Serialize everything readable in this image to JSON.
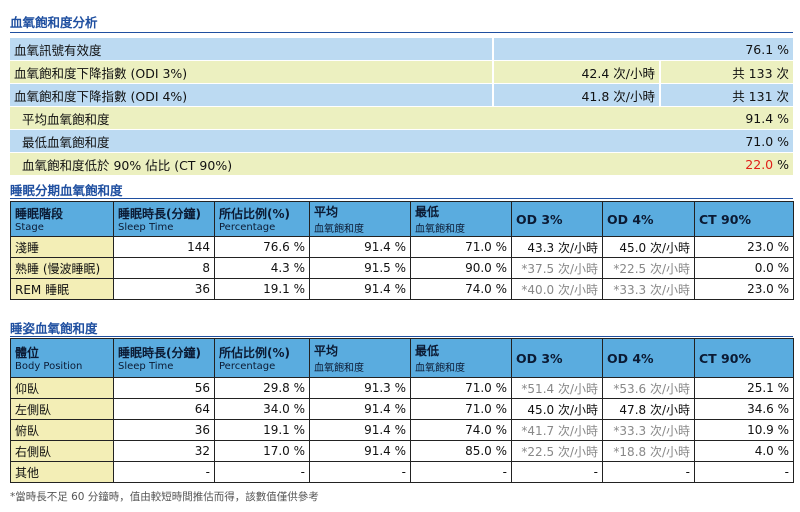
{
  "oxygen_analysis": {
    "title": "血氧飽和度分析",
    "rows": [
      {
        "label": "血氧訊號有效度",
        "value": "",
        "total": "76.1 %"
      },
      {
        "label": "血氧飽和度下降指數 (ODI 3%)",
        "value": "42.4 次/小時",
        "total": "共 133 次"
      },
      {
        "label": "血氧飽和度下降指數 (ODI 4%)",
        "value": "41.8 次/小時",
        "total": "共 131 次"
      },
      {
        "label": "平均血氧飽和度",
        "value": "",
        "total": "91.4 %"
      },
      {
        "label": "最低血氧飽和度",
        "value": "",
        "total": "71.0 %"
      },
      {
        "label": "血氧飽和度低於 90% 佔比 (CT 90%)",
        "value": "",
        "total_value": "22.0",
        "total_unit": " %"
      }
    ]
  },
  "sleep_stage": {
    "title": "睡眠分期血氧飽和度",
    "headers": [
      {
        "main": "睡眠階段",
        "sub": "Stage"
      },
      {
        "main": "睡眠時長(分鐘)",
        "sub": "Sleep Time"
      },
      {
        "main": "所佔比例(%)",
        "sub": "Percentage"
      },
      {
        "main": "平均",
        "sub": "血氧飽和度"
      },
      {
        "main": "最低",
        "sub": "血氧飽和度"
      },
      {
        "main": "OD 3%",
        "sub": ""
      },
      {
        "main": "OD 4%",
        "sub": ""
      },
      {
        "main": "CT 90%",
        "sub": ""
      }
    ],
    "rows": [
      {
        "label": "淺睡",
        "time": "144",
        "pct": "76.6 %",
        "avg": "91.4 %",
        "min": "71.0 %",
        "od3": "43.3 次/小時",
        "od4": "45.0 次/小時",
        "ct90": "23.0 %"
      },
      {
        "label": "熟睡 (慢波睡眠)",
        "time": "8",
        "pct": "4.3 %",
        "avg": "91.5 %",
        "min": "90.0 %",
        "od3": "*37.5 次/小時",
        "od4": "*22.5 次/小時",
        "ct90": "0.0 %"
      },
      {
        "label": "REM 睡眠",
        "time": "36",
        "pct": "19.1 %",
        "avg": "91.4 %",
        "min": "74.0 %",
        "od3": "*40.0 次/小時",
        "od4": "*33.3 次/小時",
        "ct90": "23.0 %"
      }
    ]
  },
  "body_position": {
    "title": "睡姿血氧飽和度",
    "headers": [
      {
        "main": "體位",
        "sub": "Body Position"
      },
      {
        "main": "睡眠時長(分鐘)",
        "sub": "Sleep Time"
      },
      {
        "main": "所佔比例(%)",
        "sub": "Percentage"
      },
      {
        "main": "平均",
        "sub": "血氧飽和度"
      },
      {
        "main": "最低",
        "sub": "血氧飽和度"
      },
      {
        "main": "OD 3%",
        "sub": ""
      },
      {
        "main": "OD 4%",
        "sub": ""
      },
      {
        "main": "CT 90%",
        "sub": ""
      }
    ],
    "rows": [
      {
        "label": "仰臥",
        "time": "56",
        "pct": "29.8 %",
        "avg": "91.3 %",
        "min": "71.0 %",
        "od3": "*51.4 次/小時",
        "od4": "*53.6 次/小時",
        "ct90": "25.1 %"
      },
      {
        "label": "左側臥",
        "time": "64",
        "pct": "34.0 %",
        "avg": "91.4 %",
        "min": "71.0 %",
        "od3": "45.0 次/小時",
        "od4": "47.8 次/小時",
        "ct90": "34.6 %"
      },
      {
        "label": "俯臥",
        "time": "36",
        "pct": "19.1 %",
        "avg": "91.4 %",
        "min": "74.0 %",
        "od3": "*41.7 次/小時",
        "od4": "*33.3 次/小時",
        "ct90": "10.9 %"
      },
      {
        "label": "右側臥",
        "time": "32",
        "pct": "17.0 %",
        "avg": "91.4 %",
        "min": "85.0 %",
        "od3": "*22.5 次/小時",
        "od4": "*18.8 次/小時",
        "ct90": "4.0 %"
      },
      {
        "label": "其他",
        "time": "-",
        "pct": "-",
        "avg": "-",
        "min": "-",
        "od3": "-",
        "od4": "-",
        "ct90": "-"
      }
    ]
  },
  "footnote": "*當時長不足 60 分鐘時，值由較短時間推估而得，該數值僅供參考",
  "colors": {
    "title": "#1f4fa0",
    "header_bg": "#5aacdf",
    "label_bg": "#f3eeb6",
    "row_blue": "#bcdaf2",
    "row_yellow": "#ecf0c0",
    "alert": "#e0201a"
  }
}
